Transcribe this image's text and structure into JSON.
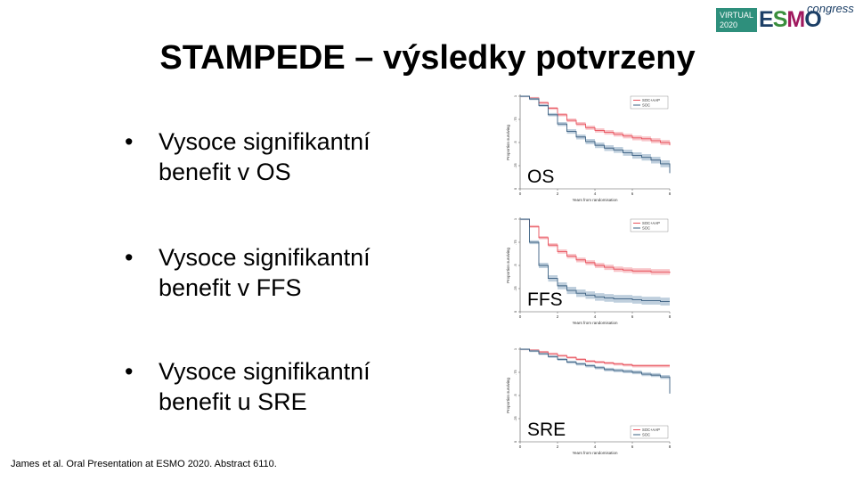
{
  "title": "STAMPEDE – výsledky potvrzeny",
  "logo": {
    "virtual_line1": "VIRTUAL",
    "virtual_line2": "2020",
    "esmo_letters": [
      "E",
      "S",
      "M",
      "O"
    ],
    "congress": "congress"
  },
  "bullets": [
    {
      "line1": "Vysoce signifikantní",
      "line2": "benefit v OS"
    },
    {
      "line1": "Vysoce signifikantní",
      "line2": "benefit v FFS"
    },
    {
      "line1": "Vysoce signifikantní",
      "line2": "benefit u SRE"
    }
  ],
  "bullet_symbol": "•",
  "footer": "James et al. Oral Presentation at ESMO 2020. Abstract  6110.",
  "colors": {
    "soc_aap": "#e8505b",
    "soc": "#3a5f80",
    "soc_aap_band": "#f6b3b8",
    "soc_band": "#a9bfd2"
  },
  "chart_data": [
    {
      "type": "line",
      "label": "OS",
      "xlabel": "Years from randomisation",
      "ylabel": "Proportion surviving",
      "xticks": [
        0,
        2,
        4,
        6,
        8
      ],
      "yticks": [
        "0",
        ".25",
        ".5",
        ".75",
        "1"
      ],
      "xlim": [
        0,
        8
      ],
      "ylim": [
        0,
        1
      ],
      "legend_position": "top-right",
      "series": [
        {
          "name": "SOC+AAP",
          "x": [
            0,
            0.5,
            1,
            1.5,
            2,
            2.5,
            3,
            3.5,
            4,
            4.5,
            5,
            5.5,
            6,
            6.5,
            7,
            7.5,
            8
          ],
          "y": [
            1,
            0.98,
            0.93,
            0.87,
            0.8,
            0.74,
            0.7,
            0.66,
            0.63,
            0.61,
            0.59,
            0.57,
            0.55,
            0.54,
            0.52,
            0.5,
            0.47
          ]
        },
        {
          "name": "SOC",
          "x": [
            0,
            0.5,
            1,
            1.5,
            2,
            2.5,
            3,
            3.5,
            4,
            4.5,
            5,
            5.5,
            6,
            6.5,
            7,
            7.5,
            8
          ],
          "y": [
            1,
            0.97,
            0.9,
            0.8,
            0.7,
            0.62,
            0.56,
            0.51,
            0.47,
            0.44,
            0.42,
            0.39,
            0.36,
            0.34,
            0.31,
            0.27,
            0.17
          ]
        }
      ]
    },
    {
      "type": "line",
      "label": "FFS",
      "xlabel": "Years from randomisation",
      "ylabel": "Proportion surviving",
      "xticks": [
        0,
        2,
        4,
        6,
        8
      ],
      "yticks": [
        "0",
        ".25",
        ".5",
        ".75",
        "1"
      ],
      "xlim": [
        0,
        8
      ],
      "ylim": [
        0,
        1
      ],
      "legend_position": "top-right",
      "series": [
        {
          "name": "SOC+AAP",
          "x": [
            0,
            0.5,
            1,
            1.5,
            2,
            2.5,
            3,
            3.5,
            4,
            4.5,
            5,
            5.5,
            6,
            6.5,
            7,
            7.5,
            8
          ],
          "y": [
            1,
            0.92,
            0.8,
            0.72,
            0.65,
            0.6,
            0.56,
            0.53,
            0.5,
            0.48,
            0.46,
            0.45,
            0.44,
            0.44,
            0.43,
            0.43,
            0.42
          ]
        },
        {
          "name": "SOC",
          "x": [
            0,
            0.5,
            1,
            1.5,
            2,
            2.5,
            3,
            3.5,
            4,
            4.5,
            5,
            5.5,
            6,
            6.5,
            7,
            7.5,
            8
          ],
          "y": [
            1,
            0.75,
            0.5,
            0.36,
            0.28,
            0.23,
            0.2,
            0.18,
            0.16,
            0.15,
            0.14,
            0.14,
            0.13,
            0.12,
            0.12,
            0.11,
            0.11
          ]
        }
      ]
    },
    {
      "type": "line",
      "label": "SRE",
      "xlabel": "Years from randomisation",
      "ylabel": "Proportion surviving",
      "xticks": [
        0,
        2,
        4,
        6,
        8
      ],
      "yticks": [
        "0",
        ".25",
        ".5",
        ".75",
        "1"
      ],
      "xlim": [
        0,
        8
      ],
      "ylim": [
        0,
        1
      ],
      "legend_position": "bottom-right",
      "series": [
        {
          "name": "SOC+AAP",
          "x": [
            0,
            0.5,
            1,
            1.5,
            2,
            2.5,
            3,
            3.5,
            4,
            4.5,
            5,
            5.5,
            6,
            6.5,
            7,
            7.5,
            8
          ],
          "y": [
            1,
            0.99,
            0.97,
            0.95,
            0.93,
            0.91,
            0.89,
            0.87,
            0.86,
            0.85,
            0.84,
            0.83,
            0.82,
            0.82,
            0.82,
            0.82,
            0.82
          ]
        },
        {
          "name": "SOC",
          "x": [
            0,
            0.5,
            1,
            1.5,
            2,
            2.5,
            3,
            3.5,
            4,
            4.5,
            5,
            5.5,
            6,
            6.5,
            7,
            7.5,
            8
          ],
          "y": [
            1,
            0.98,
            0.95,
            0.92,
            0.89,
            0.86,
            0.84,
            0.82,
            0.8,
            0.78,
            0.77,
            0.76,
            0.75,
            0.73,
            0.72,
            0.7,
            0.52
          ]
        }
      ]
    }
  ]
}
